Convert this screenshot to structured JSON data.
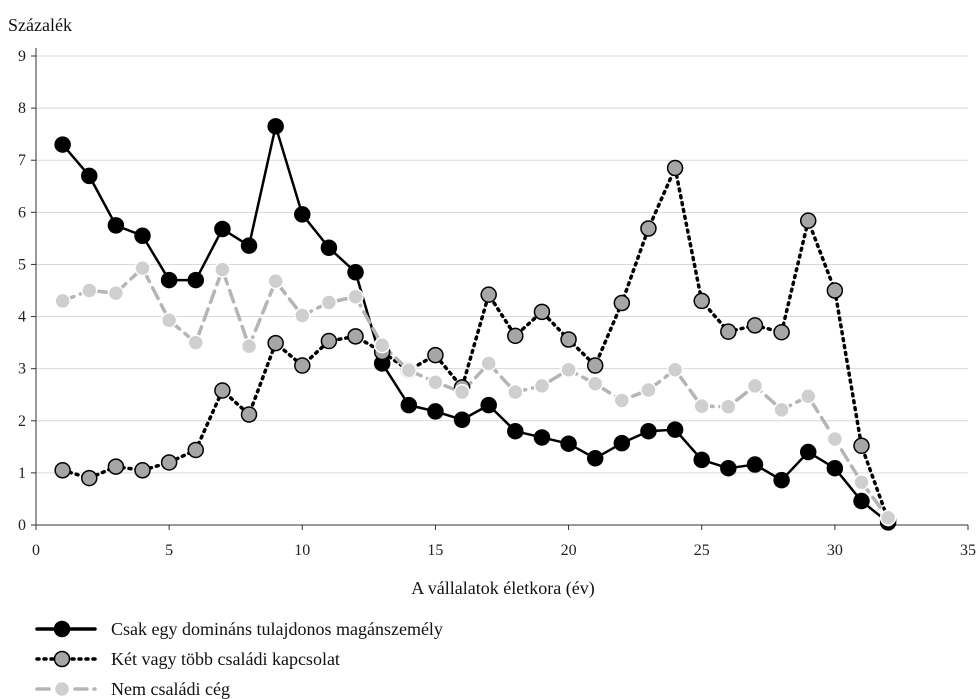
{
  "chart_data": {
    "type": "line",
    "ylabel": "Százalék",
    "xlabel": "A vállalatok életkora (év)",
    "xlim": [
      0,
      35
    ],
    "ylim": [
      0,
      9
    ],
    "xticks": [
      0,
      5,
      10,
      15,
      20,
      25,
      30,
      35
    ],
    "yticks": [
      0,
      1,
      2,
      3,
      4,
      5,
      6,
      7,
      8,
      9
    ],
    "grid": "horizontal",
    "legend_position": "bottom-left",
    "x": [
      1,
      2,
      3,
      4,
      5,
      6,
      7,
      8,
      9,
      10,
      11,
      12,
      13,
      14,
      15,
      16,
      17,
      18,
      19,
      20,
      21,
      22,
      23,
      24,
      25,
      26,
      27,
      28,
      29,
      30,
      31,
      32
    ],
    "series": [
      {
        "name": "Csak egy domináns tulajdonos magánszemély",
        "color": "#000000",
        "marker_fill": "#000000",
        "line_style": "solid",
        "values": [
          7.3,
          6.7,
          5.75,
          5.55,
          4.7,
          4.7,
          5.68,
          5.36,
          7.65,
          5.96,
          5.32,
          4.85,
          3.1,
          2.3,
          2.18,
          2.02,
          2.3,
          1.8,
          1.68,
          1.56,
          1.28,
          1.57,
          1.8,
          1.83,
          1.25,
          1.09,
          1.16,
          0.86,
          1.4,
          1.09,
          0.46,
          0.05
        ]
      },
      {
        "name": "Két vagy több családi kapcsolat",
        "color": "#000000",
        "marker_fill": "#a6a6a6",
        "line_style": "dotted",
        "values": [
          1.05,
          0.9,
          1.12,
          1.05,
          1.2,
          1.44,
          2.58,
          2.12,
          3.49,
          3.06,
          3.53,
          3.62,
          3.32,
          2.97,
          3.26,
          2.64,
          4.42,
          3.63,
          4.09,
          3.56,
          3.06,
          4.26,
          5.69,
          6.85,
          4.3,
          3.71,
          3.83,
          3.7,
          5.84,
          4.5,
          1.52,
          0.1
        ]
      },
      {
        "name": "Nem családi cég",
        "color": "#b5b5b5",
        "marker_fill": "#cfcfcf",
        "line_style": "dashed",
        "values": [
          4.3,
          4.5,
          4.45,
          4.93,
          3.93,
          3.5,
          4.9,
          3.43,
          4.68,
          4.02,
          4.27,
          4.38,
          3.45,
          2.97,
          2.74,
          2.55,
          3.1,
          2.55,
          2.67,
          2.98,
          2.71,
          2.39,
          2.59,
          2.98,
          2.28,
          2.27,
          2.67,
          2.21,
          2.47,
          1.65,
          0.82,
          0.14
        ]
      }
    ]
  }
}
